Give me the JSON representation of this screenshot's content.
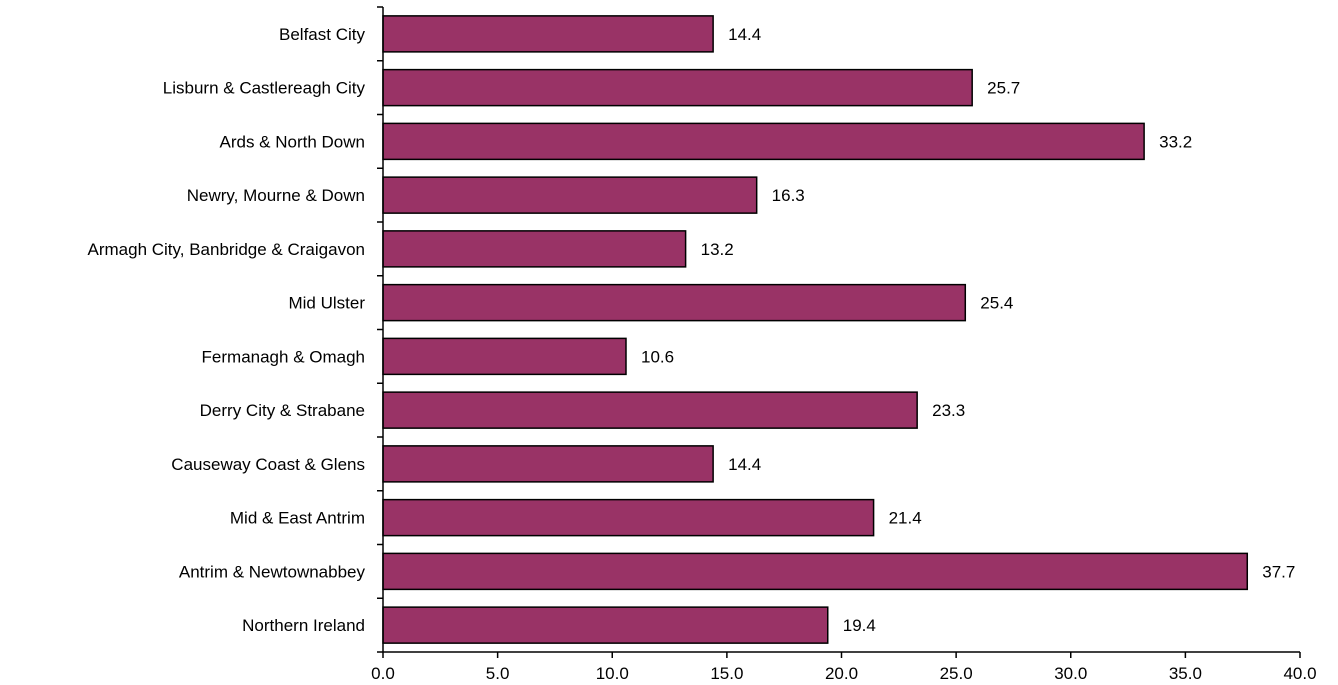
{
  "chart_data": {
    "type": "bar",
    "orientation": "horizontal",
    "title": "",
    "xlabel": "",
    "ylabel": "",
    "categories": [
      "Belfast City",
      "Lisburn & Castlereagh City",
      "Ards & North Down",
      "Newry, Mourne & Down",
      "Armagh City, Banbridge & Craigavon",
      "Mid Ulster",
      "Fermanagh & Omagh",
      "Derry City & Strabane",
      "Causeway Coast & Glens",
      "Mid & East Antrim",
      "Antrim & Newtownabbey",
      "Northern Ireland"
    ],
    "values": [
      14.4,
      25.7,
      33.2,
      16.3,
      13.2,
      25.4,
      10.6,
      23.3,
      14.4,
      21.4,
      37.7,
      19.4
    ],
    "value_labels": [
      "14.4",
      "25.7",
      "33.2",
      "16.3",
      "13.2",
      "25.4",
      "10.6",
      "23.3",
      "14.4",
      "21.4",
      "37.7",
      "19.4"
    ],
    "xlim": [
      0,
      40
    ],
    "x_ticks": [
      "0.0",
      "5.0",
      "10.0",
      "15.0",
      "20.0",
      "25.0",
      "30.0",
      "35.0",
      "40.0"
    ],
    "grid": false,
    "legend": "none",
    "bar_color": "#993366",
    "bar_edge_color": "#000000"
  }
}
